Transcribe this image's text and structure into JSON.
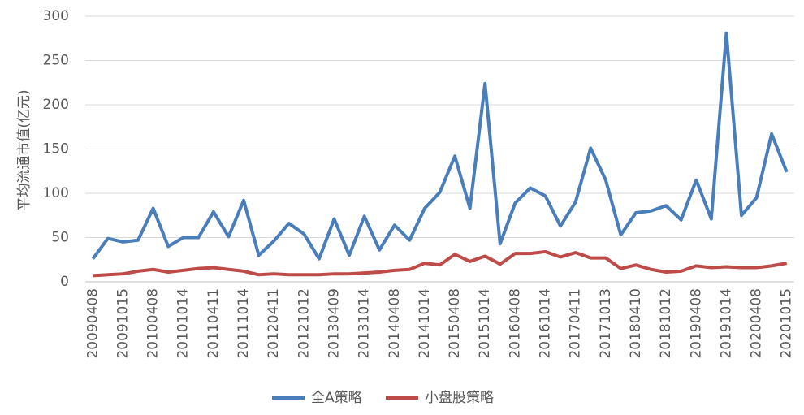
{
  "chart_data": {
    "type": "line",
    "ylabel": "平均流通市值(亿元)",
    "categories": [
      "20090408",
      null,
      "20091015",
      null,
      "20100408",
      null,
      "20101014",
      null,
      "20110411",
      null,
      "20111014",
      null,
      "20120411",
      null,
      "20121012",
      null,
      "20130409",
      null,
      "20131014",
      null,
      "20140408",
      null,
      "20141014",
      null,
      "20150408",
      null,
      "20151014",
      null,
      "20160408",
      null,
      "20161014",
      null,
      "20170411",
      null,
      "20171013",
      null,
      "20180410",
      null,
      "20181012",
      null,
      "20190408",
      null,
      "20191014",
      null,
      "20200408",
      null,
      "20201015"
    ],
    "series": [
      {
        "name": "全A策略",
        "color": "#4a7ebb",
        "values": [
          26,
          49,
          45,
          47,
          83,
          40,
          50,
          50,
          79,
          51,
          92,
          30,
          46,
          66,
          54,
          26,
          71,
          30,
          74,
          36,
          64,
          47,
          83,
          101,
          142,
          83,
          224,
          43,
          89,
          106,
          97,
          63,
          90,
          151,
          115,
          53,
          78,
          80,
          86,
          70,
          115,
          71,
          281,
          75,
          95,
          167,
          124
        ]
      },
      {
        "name": "小盘股策略",
        "color": "#be4b48",
        "values": [
          7,
          8,
          9,
          12,
          14,
          11,
          13,
          15,
          16,
          14,
          12,
          8,
          9,
          8,
          8,
          8,
          9,
          9,
          10,
          11,
          13,
          14,
          21,
          19,
          31,
          23,
          29,
          20,
          32,
          32,
          34,
          28,
          33,
          27,
          27,
          15,
          19,
          14,
          11,
          12,
          18,
          16,
          17,
          16,
          16,
          18,
          21
        ]
      }
    ],
    "ylim": [
      0,
      300
    ],
    "yticks": [
      0,
      50,
      100,
      150,
      200,
      250,
      300
    ],
    "grid": true
  }
}
